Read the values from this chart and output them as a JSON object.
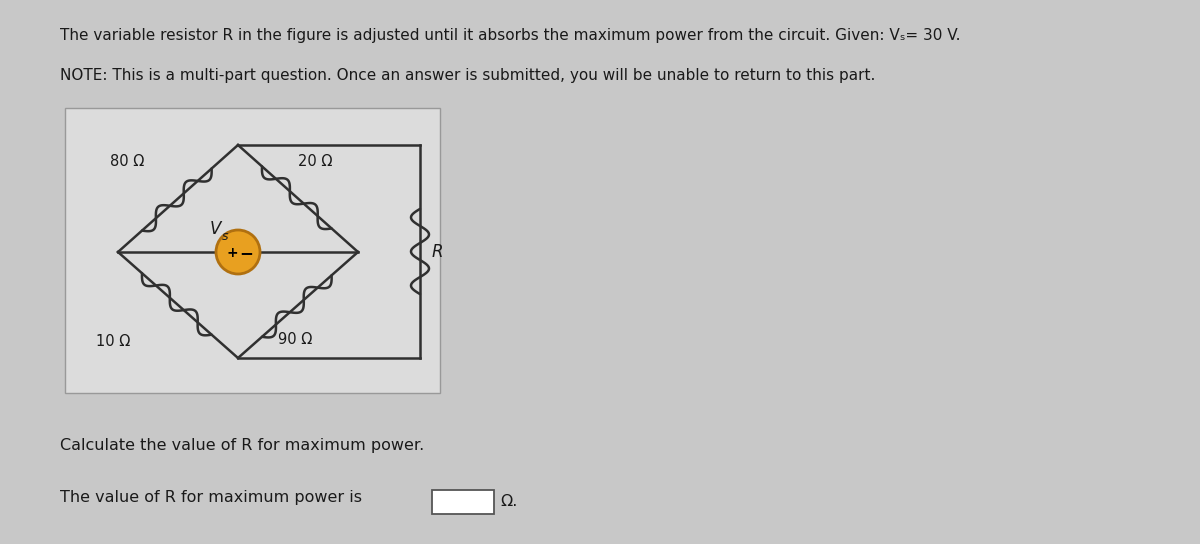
{
  "title_line1": "The variable resistor R in the figure is adjusted until it absorbs the maximum power from the circuit. Given: Vₛ= 30 V.",
  "title_line2": "NOTE: This is a multi-part question. Once an answer is submitted, you will be unable to return to this part.",
  "bottom_line1": "Calculate the value of R for maximum power.",
  "bottom_line2": "The value of R for maximum power is",
  "omega_symbol": "Ω.",
  "R80": "80 Ω",
  "R20": "20 Ω",
  "R10": "10 Ω",
  "R90": "90 Ω",
  "R_label": "R",
  "Vs_label": "V",
  "Vs_sub": "s",
  "bg_color": "#c8c8c8",
  "box_bg": "#e8e4dc",
  "wire_color": "#303030",
  "text_color": "#1a1a1a",
  "source_fill": "#e8a020",
  "source_edge": "#b07010"
}
